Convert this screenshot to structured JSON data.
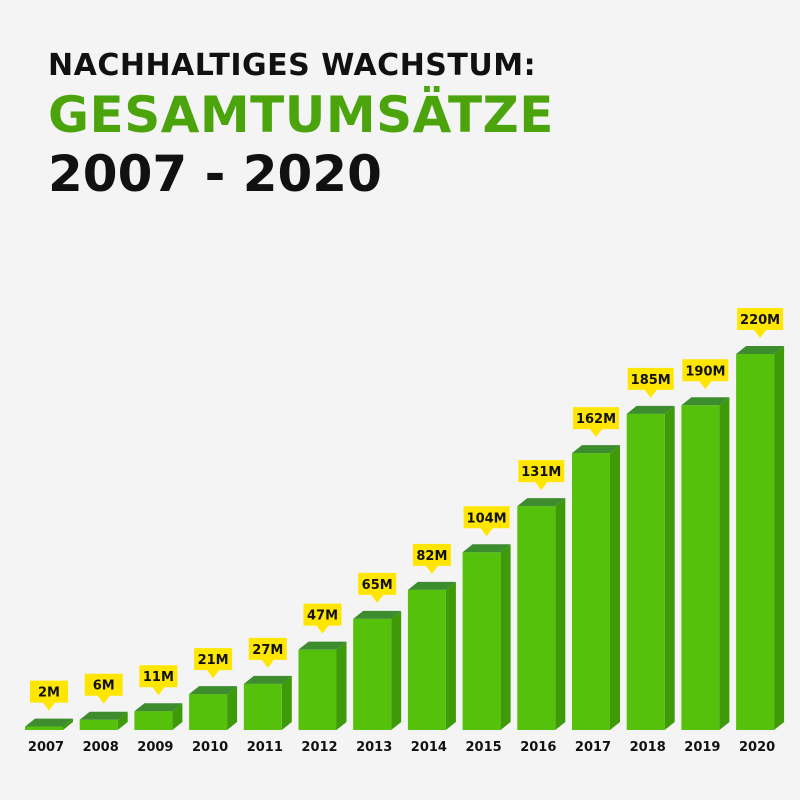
{
  "header": {
    "line1": "NACHHALTIGES WACHSTUM:",
    "line2": "GESAMTUMSÄTZE",
    "line3": "2007 - 2020"
  },
  "colors": {
    "bar_front": "#55c10a",
    "bar_side": "#3e9a08",
    "bar_top": "#3d8c2e",
    "label_bg": "#ffe600",
    "title_accent": "#4ca40c"
  },
  "chart_data": {
    "type": "bar",
    "title": "NACHHALTIGES WACHSTUM: GESAMTUMSÄTZE 2007 - 2020",
    "categories": [
      "2007",
      "2008",
      "2009",
      "2010",
      "2011",
      "2012",
      "2013",
      "2014",
      "2015",
      "2016",
      "2017",
      "2018",
      "2019",
      "2020"
    ],
    "values": [
      2,
      6,
      11,
      21,
      27,
      47,
      65,
      82,
      104,
      131,
      162,
      185,
      190,
      220
    ],
    "data_labels": [
      "2M",
      "6M",
      "11M",
      "21M",
      "27M",
      "47M",
      "65M",
      "82M",
      "104M",
      "131M",
      "162M",
      "185M",
      "190M",
      "220M"
    ],
    "unit": "M",
    "ylim": [
      0,
      220
    ],
    "grid": false,
    "legend": "none"
  }
}
